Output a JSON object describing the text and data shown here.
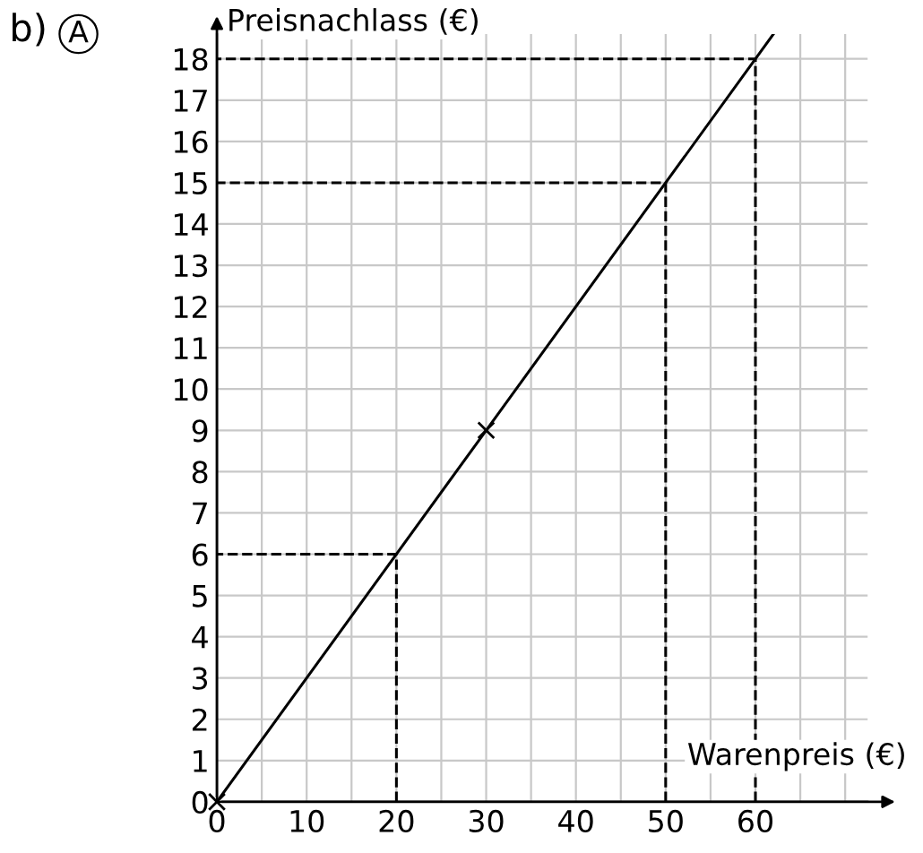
{
  "chart_data": {
    "type": "line",
    "title": "b)",
    "annotations": [
      "A"
    ],
    "xlabel": "Warenpreis (€)",
    "ylabel": "Preisnachlass (€)",
    "xlim": [
      0,
      72.5
    ],
    "ylim": [
      0,
      18.6
    ],
    "xticks": [
      0,
      {
        "value": 5,
        "label": null
      },
      10,
      {
        "value": 15,
        "label": null
      },
      20,
      {
        "value": 25,
        "label": null
      },
      30,
      {
        "value": 35,
        "label": null
      },
      40,
      {
        "value": 45,
        "label": null
      },
      50,
      {
        "value": 55,
        "label": null
      },
      60,
      {
        "value": 65,
        "label": null
      },
      {
        "value": 70,
        "label": null
      }
    ],
    "yticks": [
      0,
      1,
      2,
      3,
      4,
      5,
      6,
      7,
      8,
      9,
      10,
      11,
      12,
      13,
      14,
      15,
      16,
      17,
      18
    ],
    "grid": true,
    "legend": false,
    "series": [
      {
        "color": "#000000",
        "line_style": "solid",
        "marker": "none",
        "x": [
          0,
          30,
          62
        ],
        "values": [
          0,
          9,
          18.6
        ]
      },
      {
        "type": "scatter",
        "color": "#000000",
        "marker": "cross",
        "x": [
          0,
          30
        ],
        "values": [
          0,
          9
        ]
      },
      {
        "type": "line",
        "color": "#000000",
        "line_style": "dashed",
        "marker": "none",
        "x": [
          20,
          20,
          0
        ],
        "values": [
          0,
          6,
          6
        ]
      },
      {
        "type": "line",
        "color": "#000000",
        "line_style": "dashed",
        "marker": "none",
        "x": [
          50,
          50,
          0
        ],
        "values": [
          0,
          15,
          15
        ]
      },
      {
        "type": "line",
        "color": "#000000",
        "line_style": "dashed",
        "marker": "none",
        "x": [
          60,
          60,
          0
        ],
        "values": [
          0,
          18,
          18
        ]
      }
    ]
  }
}
